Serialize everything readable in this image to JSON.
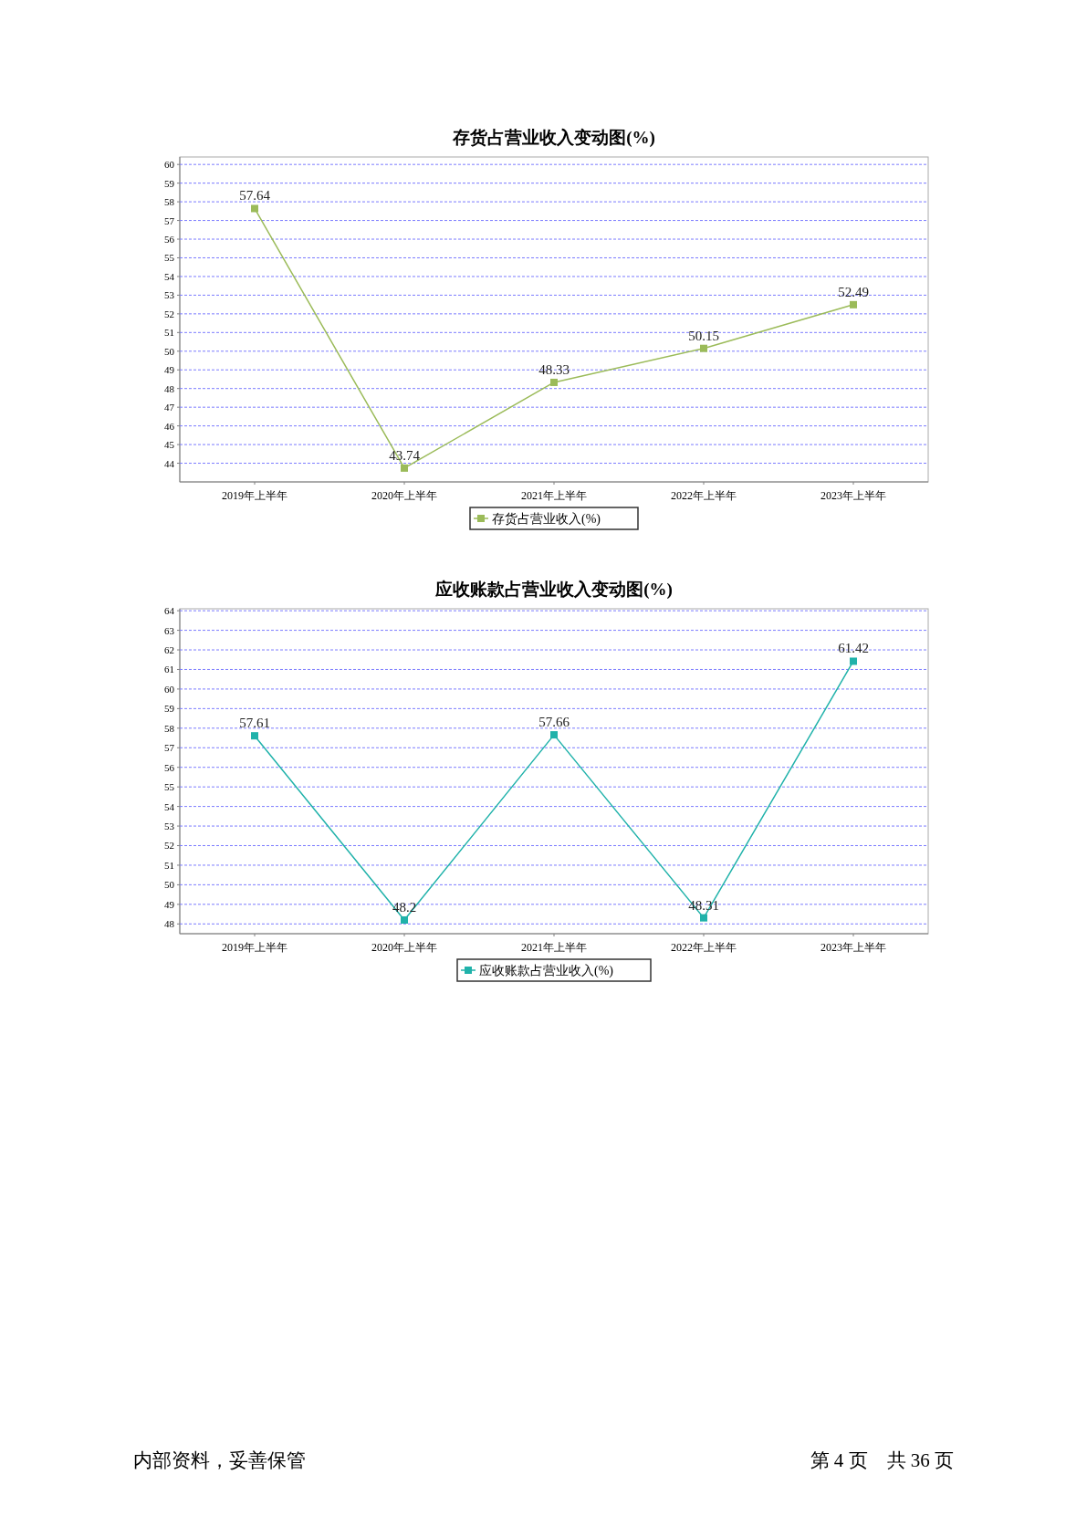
{
  "chart_data": [
    {
      "type": "line",
      "title": "存货占营业收入变动图(%)",
      "categories": [
        "2019年上半年",
        "2020年上半年",
        "2021年上半年",
        "2022年上半年",
        "2023年上半年"
      ],
      "series": [
        {
          "name": "存货占营业收入(%)",
          "color": "#9bbb59",
          "values": [
            57.64,
            43.74,
            48.33,
            50.15,
            52.49
          ]
        }
      ],
      "ylim": [
        43,
        60.4
      ],
      "yticks": [
        44,
        45,
        46,
        47,
        48,
        49,
        50,
        51,
        52,
        53,
        54,
        55,
        56,
        57,
        58,
        59,
        60
      ],
      "grid": "y",
      "legend": "bottom",
      "marker": "square",
      "line_style": "solid",
      "data_labels": true
    },
    {
      "type": "line",
      "title": "应收账款占营业收入变动图(%)",
      "categories": [
        "2019年上半年",
        "2020年上半年",
        "2021年上半年",
        "2022年上半年",
        "2023年上半年"
      ],
      "series": [
        {
          "name": "应收账款占营业收入(%)",
          "color": "#20b2aa",
          "values": [
            57.61,
            48.2,
            57.66,
            48.31,
            61.42
          ]
        }
      ],
      "ylim": [
        47.5,
        64.1
      ],
      "yticks": [
        48,
        49,
        50,
        51,
        52,
        53,
        54,
        55,
        56,
        57,
        58,
        59,
        60,
        61,
        62,
        63,
        64
      ],
      "grid": "y",
      "legend": "bottom",
      "marker": "square",
      "line_style": "solid",
      "data_labels": true,
      "annotations": [
        "内部资料，妥善保管",
        "第 4 页　共 36 页"
      ]
    }
  ]
}
